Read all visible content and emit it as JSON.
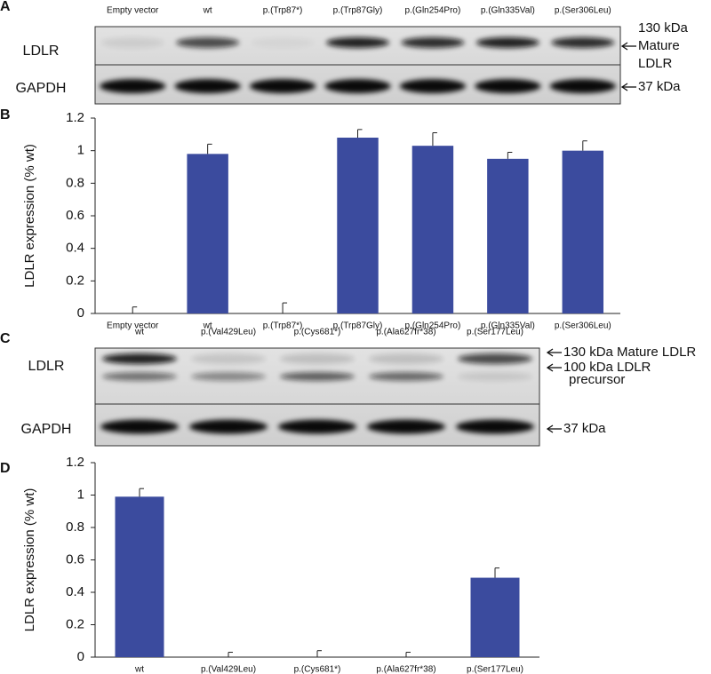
{
  "blots": [
    {
      "label": "A",
      "lanes": [
        "Empty vector",
        "wt",
        "p.(Trp87*)",
        "p.(Trp87Gly)",
        "p.(Gln254Pro)",
        "p.(Gln335Val)",
        "p.(Ser306Leu)"
      ],
      "rows": [
        "LDLR",
        "GAPDH"
      ],
      "annotations": [
        "130 kDa",
        "Mature",
        "LDLR",
        "37 kDa"
      ]
    },
    {
      "label": "C",
      "lanes": [
        "wt",
        "p.(Val429Leu)",
        "p.(Cys681*)",
        "p.(Ala627fr*38)",
        "p.(Ser177Leu)"
      ],
      "rows": [
        "LDLR",
        "GAPDH"
      ],
      "annotations": [
        "130 kDa Mature LDLR",
        "100 kDa LDLR",
        "precursor",
        "37 kDa"
      ]
    }
  ],
  "chart_data": [
    {
      "type": "bar",
      "panel": "B",
      "ylabel": "LDLR expression (% wt)",
      "categories": [
        "Empty vector",
        "wt",
        "p.(Trp87*)",
        "p.(Trp87Gly)",
        "p.(Gln254Pro)",
        "p.(Gln335Val)",
        "p.(Ser306Leu)"
      ],
      "values": [
        0,
        0.98,
        0,
        1.08,
        1.03,
        0.95,
        1.0
      ],
      "errors": [
        0.04,
        0.06,
        0.065,
        0.05,
        0.08,
        0.04,
        0.06
      ],
      "color": "#3b4b9e",
      "ylim": [
        0,
        1.2
      ],
      "yticks": [
        0,
        0.2,
        0.4,
        0.6,
        0.8,
        1,
        1.2
      ]
    },
    {
      "type": "bar",
      "panel": "D",
      "ylabel": "LDLR expression (% wt)",
      "categories": [
        "wt",
        "p.(Val429Leu)",
        "p.(Cys681*)",
        "p.(Ala627fr*38)",
        "p.(Ser177Leu)"
      ],
      "values": [
        0.99,
        0,
        0,
        0,
        0.49
      ],
      "errors": [
        0.05,
        0.03,
        0.04,
        0.03,
        0.06
      ],
      "color": "#3b4b9e",
      "ylim": [
        0,
        1.2
      ],
      "yticks": [
        0,
        0.2,
        0.4,
        0.6,
        0.8,
        1,
        1.2
      ]
    }
  ]
}
